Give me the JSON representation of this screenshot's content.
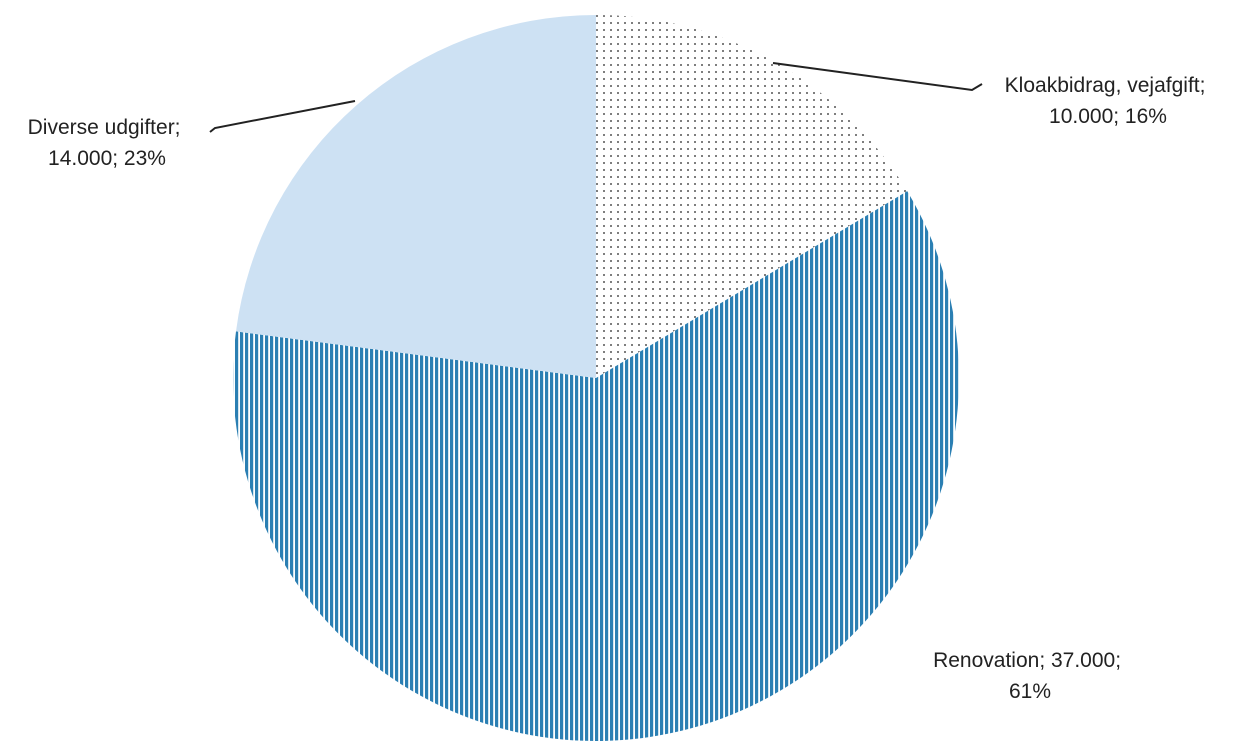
{
  "chart_data": {
    "type": "pie",
    "title": "",
    "slices": [
      {
        "name": "Kloakbidrag, vejafgift",
        "value": 10000,
        "value_text": "10.000",
        "percent_text": "16%",
        "pattern": "dots",
        "color": "#555555"
      },
      {
        "name": "Renovation",
        "value": 37000,
        "value_text": "37.000",
        "percent_text": "61%",
        "pattern": "vertical-stripes",
        "color": "#2b7fb3"
      },
      {
        "name": "Diverse udgifter",
        "value": 14000,
        "value_text": "14.000",
        "percent_text": "23%",
        "pattern": "solid",
        "color": "#cde1f3"
      }
    ],
    "labels": [
      {
        "slice": 0,
        "line1": "Kloakbidrag, vejafgift;",
        "line2": "10.000; 16%"
      },
      {
        "slice": 1,
        "line1": "Renovation; 37.000;",
        "line2": "61%"
      },
      {
        "slice": 2,
        "line1": "Diverse udgifter;",
        "line2": "14.000; 23%"
      }
    ],
    "legend": "none",
    "start_angle": "12 o'clock",
    "direction": "clockwise"
  }
}
